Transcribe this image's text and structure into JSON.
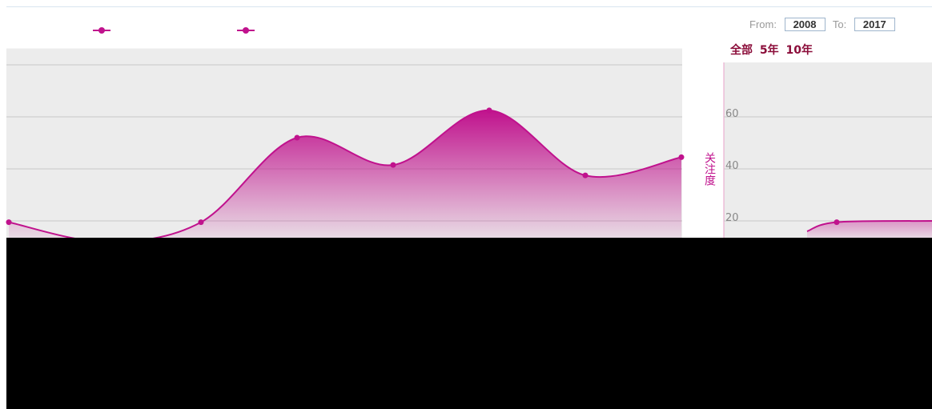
{
  "controls": {
    "from_label": "From:",
    "from_value": "2008",
    "to_label": "To:",
    "to_value": "2017",
    "zoom_all": "全部",
    "zoom_5y": "5年",
    "zoom_10y": "10年"
  },
  "colors": {
    "series": "#c0128d",
    "plot_bg": "#ececec",
    "grid": "#c8c8c8"
  },
  "chart_data": {
    "type": "area",
    "title": "",
    "ylabel": "关注度",
    "y_ticks": [
      "20",
      "40",
      "60"
    ],
    "ylim": [
      0,
      80
    ],
    "series": [
      {
        "name": "",
        "values": [
          19.5,
          12,
          19.5,
          52,
          41.5,
          62.5,
          37.5,
          44.5
        ]
      }
    ],
    "mini_series": [
      16,
      19.5,
      20
    ]
  }
}
